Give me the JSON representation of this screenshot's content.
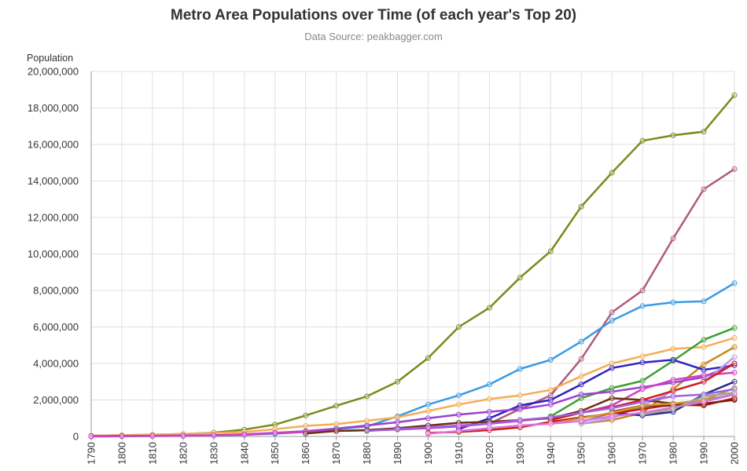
{
  "chart_data": {
    "type": "line",
    "title": "Metro Area Populations over Time (of each year's Top 20)",
    "subtitle": "Data Source: peakbagger.com",
    "ylabel": "Population",
    "xlabel": "",
    "ylim": [
      0,
      20000000
    ],
    "grid": true,
    "legend": "none",
    "x": [
      1790,
      1800,
      1810,
      1820,
      1830,
      1840,
      1850,
      1860,
      1870,
      1880,
      1890,
      1900,
      1910,
      1920,
      1930,
      1940,
      1950,
      1960,
      1970,
      1980,
      1990,
      2000
    ],
    "y_ticks": [
      "0",
      "2,000,000",
      "4,000,000",
      "6,000,000",
      "8,000,000",
      "10,000,000",
      "12,000,000",
      "14,000,000",
      "16,000,000",
      "18,000,000",
      "20,000,000"
    ],
    "series": [
      {
        "color": "#7a8a1e",
        "x": [
          1790,
          1800,
          1810,
          1820,
          1830,
          1840,
          1850,
          1860,
          1870,
          1880,
          1890,
          1900,
          1910,
          1920,
          1930,
          1940,
          1950,
          1960,
          1970,
          1980,
          1990,
          2000
        ],
        "values": [
          40000,
          70000,
          100000,
          130000,
          210000,
          380000,
          650000,
          1150000,
          1680000,
          2200000,
          3000000,
          4300000,
          6000000,
          7050000,
          8700000,
          10150000,
          12600000,
          14450000,
          16200000,
          16500000,
          16700000,
          18700000
        ]
      },
      {
        "color": "#b05a80",
        "x": [
          1920,
          1930,
          1940,
          1950,
          1960,
          1970,
          1980,
          1990,
          2000
        ],
        "values": [
          700000,
          1500000,
          2250000,
          4250000,
          6800000,
          8000000,
          10850000,
          13550000,
          14650000
        ]
      },
      {
        "color": "#3a9ae0",
        "x": [
          1790,
          1800,
          1810,
          1820,
          1830,
          1840,
          1850,
          1860,
          1870,
          1880,
          1890,
          1900,
          1910,
          1920,
          1930,
          1940,
          1950,
          1960,
          1970,
          1980,
          1990,
          2000
        ],
        "values": [
          0,
          10000,
          20000,
          30000,
          50000,
          90000,
          150000,
          250000,
          400000,
          550000,
          1100000,
          1750000,
          2250000,
          2850000,
          3700000,
          4200000,
          5200000,
          6350000,
          7150000,
          7350000,
          7400000,
          8400000
        ]
      },
      {
        "color": "#f5ad55",
        "x": [
          1790,
          1800,
          1810,
          1820,
          1830,
          1840,
          1850,
          1860,
          1870,
          1880,
          1890,
          1900,
          1910,
          1920,
          1930,
          1940,
          1950,
          1960,
          1970,
          1980,
          1990,
          2000
        ],
        "values": [
          40000,
          70000,
          100000,
          140000,
          190000,
          250000,
          400000,
          580000,
          680000,
          860000,
          1050000,
          1400000,
          1750000,
          2050000,
          2250000,
          2550000,
          3300000,
          4000000,
          4400000,
          4800000,
          4900000,
          5400000
        ]
      },
      {
        "color": "#3ca030",
        "x": [
          1940,
          1950,
          1960,
          1970,
          1980,
          1990,
          2000
        ],
        "values": [
          1100000,
          2100000,
          2650000,
          3050000,
          4150000,
          5300000,
          5950000
        ]
      },
      {
        "color": "#c48a20",
        "x": [
          1950,
          1960,
          1970,
          1980,
          1990,
          2000
        ],
        "values": [
          700000,
          900000,
          1300000,
          2600000,
          3950000,
          4900000
        ]
      },
      {
        "color": "#3020c0",
        "x": [
          1910,
          1920,
          1930,
          1940,
          1950,
          1960,
          1970,
          1980,
          1990,
          2000
        ],
        "values": [
          400000,
          1000000,
          1700000,
          2000000,
          2850000,
          3750000,
          4050000,
          4200000,
          3650000,
          3900000
        ]
      },
      {
        "color": "#9a40d0",
        "x": [
          1790,
          1800,
          1810,
          1820,
          1830,
          1840,
          1850,
          1860,
          1870,
          1880,
          1890,
          1900,
          1910,
          1920,
          1930,
          1940,
          1950,
          1960,
          1970,
          1980,
          1990,
          2000
        ],
        "values": [
          20000,
          30000,
          40000,
          50000,
          70000,
          120000,
          200000,
          290000,
          430000,
          600000,
          780000,
          1000000,
          1200000,
          1350000,
          1500000,
          1750000,
          2300000,
          2450000,
          2700000,
          2950000,
          3250000,
          4000000
        ]
      },
      {
        "color": "#b8a0e8",
        "x": [
          1950,
          1960,
          1970,
          1980,
          1990,
          2000
        ],
        "values": [
          700000,
          1000000,
          1700000,
          2500000,
          3000000,
          4350000
        ]
      },
      {
        "color": "#d040c0",
        "x": [
          1790,
          1800,
          1810,
          1820,
          1830,
          1840,
          1850,
          1860,
          1870,
          1880,
          1890,
          1900,
          1910,
          1920,
          1930,
          1940,
          1950,
          1960,
          1970,
          1980,
          1990,
          2000
        ],
        "values": [
          10000,
          20000,
          30000,
          40000,
          60000,
          100000,
          180000,
          250000,
          300000,
          330000,
          380000,
          450000,
          550000,
          700000,
          850000,
          1050000,
          1300000,
          1700000,
          2600000,
          3100000,
          3350000,
          3500000
        ]
      },
      {
        "color": "#6b3010",
        "x": [
          1860,
          1870,
          1880,
          1890,
          1900,
          1910,
          1920,
          1930,
          1940,
          1950,
          1960,
          1970,
          1980,
          1990,
          2000
        ],
        "values": [
          160000,
          300000,
          350000,
          450000,
          600000,
          750000,
          800000,
          900000,
          1000000,
          1400000,
          2100000,
          2000000,
          1800000,
          1800000,
          2000000
        ]
      },
      {
        "color": "#888888",
        "x": [
          1950,
          1960,
          1970,
          1980,
          1990,
          2000
        ],
        "values": [
          800000,
          1300000,
          1600000,
          1700000,
          2000000,
          2300000
        ]
      },
      {
        "color": "#d02020",
        "x": [
          1940,
          1950,
          1960,
          1970,
          1980,
          1990,
          2000
        ],
        "values": [
          900000,
          1300000,
          1600000,
          2000000,
          2500000,
          3000000,
          4000000
        ]
      },
      {
        "color": "#2a2a8a",
        "x": [
          1960,
          1970,
          1980,
          1990,
          2000
        ],
        "values": [
          1300000,
          1150000,
          1350000,
          2300000,
          3000000
        ]
      },
      {
        "color": "#c02010",
        "x": [
          1900,
          1910,
          1920,
          1930,
          1940,
          1950,
          1960,
          1970,
          1980,
          1990,
          2000
        ],
        "values": [
          200000,
          250000,
          350000,
          500000,
          800000,
          1050000,
          1250000,
          1500000,
          1750000,
          1700000,
          2100000
        ]
      },
      {
        "color": "#8a1c10",
        "x": [
          1960,
          1970,
          1980,
          1990,
          2000
        ],
        "values": [
          1350000,
          1700000,
          1700000,
          1750000,
          2050000
        ]
      },
      {
        "color": "#d09a30",
        "x": [
          1940,
          1950,
          1960,
          1970,
          1980,
          1990,
          2000
        ],
        "values": [
          700000,
          1000000,
          1300000,
          1700000,
          1800000,
          2000000,
          2650000
        ]
      },
      {
        "color": "#a060e0",
        "x": [
          1880,
          1890,
          1900,
          1910,
          1920,
          1930,
          1940,
          1950,
          1960,
          1970,
          1980,
          1990,
          2000
        ],
        "values": [
          300000,
          400000,
          500000,
          600000,
          700000,
          900000,
          1050000,
          1300000,
          1550000,
          1900000,
          2200000,
          2300000,
          2600000
        ]
      },
      {
        "color": "#e070e0",
        "x": [
          1900,
          1910,
          1920,
          1930,
          1940,
          1950,
          1960,
          1970,
          1980,
          1990,
          2000
        ],
        "values": [
          150000,
          300000,
          450000,
          600000,
          700000,
          850000,
          1100000,
          1300000,
          1600000,
          1900000,
          2300000
        ]
      },
      {
        "color": "#a0a0a0",
        "x": [
          1970,
          1980,
          1990,
          2000
        ],
        "values": [
          1200000,
          1500000,
          2200000,
          2400000
        ]
      }
    ]
  }
}
